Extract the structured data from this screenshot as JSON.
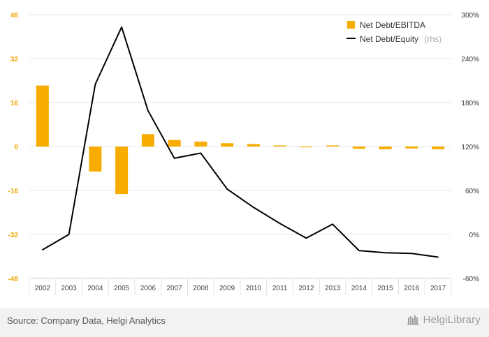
{
  "chart_data": {
    "type": "bar+line",
    "categories": [
      "2002",
      "2003",
      "2004",
      "2005",
      "2006",
      "2007",
      "2008",
      "2009",
      "2010",
      "2011",
      "2012",
      "2013",
      "2014",
      "2015",
      "2016",
      "2017"
    ],
    "series": [
      {
        "name": "Net Debt/EBITDA",
        "type": "bar",
        "axis": "left",
        "color": "#f8ac00",
        "values": [
          22.2,
          0,
          -9.1,
          -17.3,
          4.5,
          2.4,
          1.8,
          1.2,
          0.9,
          0.4,
          -0.3,
          0.4,
          -0.8,
          -1.0,
          -0.7,
          -1.0
        ]
      },
      {
        "name": "Net Debt/Equity",
        "name_suffix": "(rhs)",
        "type": "line",
        "axis": "right",
        "color": "#000000",
        "values": [
          -21,
          0,
          205,
          283,
          169,
          104,
          111,
          62,
          37,
          15,
          -5,
          14,
          -22,
          -25,
          -26,
          -31
        ]
      }
    ],
    "left_axis": {
      "ylim": [
        -48,
        48
      ],
      "ticks": [
        "48",
        "32",
        "16",
        "0",
        "-16",
        "-32",
        "-48"
      ],
      "color": "#f0a500"
    },
    "right_axis": {
      "ylim": [
        -60,
        300
      ],
      "ticks": [
        "300%",
        "240%",
        "180%",
        "120%",
        "60%",
        "0%",
        "-60%"
      ]
    },
    "grid": true,
    "legend": "top-right"
  },
  "footer": {
    "source": "Source: Company Data, Helgi Analytics",
    "brand": "HelgiLibrary"
  }
}
